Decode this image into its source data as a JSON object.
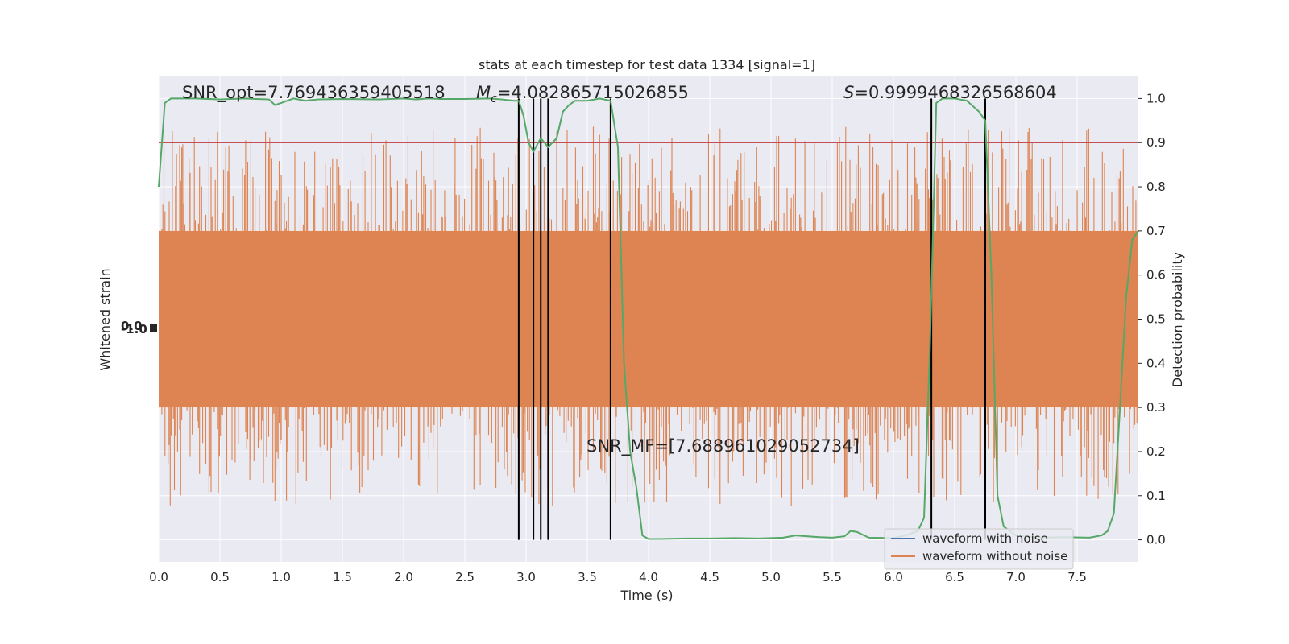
{
  "chart_data": {
    "type": "line",
    "title": "stats at each timestep for test data 1334 [signal=1]",
    "xlabel": "Time (s)",
    "ylabel_left": "Whitened strain",
    "ylabel_right": "Detection probability",
    "xlim": [
      0.0,
      8.0
    ],
    "ylim_right": [
      -0.05,
      1.05
    ],
    "x_ticks": [
      "0.0",
      "0.5",
      "1.0",
      "1.5",
      "2.0",
      "2.5",
      "3.0",
      "3.5",
      "4.0",
      "4.5",
      "5.0",
      "5.5",
      "6.0",
      "6.5",
      "7.0",
      "7.5"
    ],
    "x_tick_values": [
      0.0,
      0.5,
      1.0,
      1.5,
      2.0,
      2.5,
      3.0,
      3.5,
      4.0,
      4.5,
      5.0,
      5.5,
      6.0,
      6.5,
      7.0,
      7.5
    ],
    "right_ticks": [
      "0.0",
      "0.1",
      "0.2",
      "0.3",
      "0.4",
      "0.5",
      "0.6",
      "0.7",
      "0.8",
      "0.9",
      "1.0"
    ],
    "right_tick_values": [
      0.0,
      0.1,
      0.2,
      0.3,
      0.4,
      0.5,
      0.6,
      0.7,
      0.8,
      0.9,
      1.0
    ],
    "grid": true,
    "threshold": 0.9,
    "vlines": [
      2.94,
      3.06,
      3.12,
      3.18,
      3.69,
      6.31,
      6.75
    ],
    "annotations": {
      "snr_opt": "SNR_opt=7.769436359405518",
      "mc_symbol": "M",
      "mc_sub": "c",
      "mc_value": "=4.082865715026855",
      "s_symbol": "S",
      "s_value": "=0.9999468326568604",
      "snr_mf": "SNR_MF=[7.688961029052734]"
    },
    "legend": {
      "placement": "lower-right",
      "entries": [
        {
          "label": "waveform with noise",
          "color": "#4c72b0"
        },
        {
          "label": "waveform without noise",
          "color": "#dd8452"
        }
      ]
    },
    "colors": {
      "noise_fill": "#dd8452",
      "probability_line": "#55a868",
      "threshold_line": "#c44e52",
      "vline": "#000000",
      "plot_bg": "#eaeaf2"
    },
    "series": [
      {
        "name": "Detection probability",
        "x": [
          0.0,
          0.05,
          0.1,
          0.2,
          0.3,
          0.5,
          0.7,
          0.8,
          0.9,
          0.95,
          1.0,
          1.1,
          1.2,
          1.3,
          1.5,
          1.8,
          2.0,
          2.1,
          2.2,
          2.3,
          2.5,
          2.7,
          2.8,
          2.9,
          2.94,
          2.98,
          3.02,
          3.06,
          3.12,
          3.18,
          3.25,
          3.3,
          3.35,
          3.4,
          3.5,
          3.6,
          3.69,
          3.75,
          3.8,
          3.85,
          3.9,
          3.95,
          4.0,
          4.05,
          4.1,
          4.3,
          4.5,
          4.7,
          4.9,
          5.1,
          5.2,
          5.4,
          5.5,
          5.6,
          5.65,
          5.7,
          5.8,
          6.0,
          6.1,
          6.2,
          6.25,
          6.3,
          6.35,
          6.4,
          6.5,
          6.6,
          6.7,
          6.75,
          6.8,
          6.85,
          6.9,
          7.0,
          7.2,
          7.4,
          7.6,
          7.7,
          7.75,
          7.8,
          7.85,
          7.9,
          7.95,
          8.0
        ],
        "y": [
          0.8,
          0.99,
          1.0,
          1.0,
          1.0,
          0.998,
          1.0,
          0.999,
          0.998,
          0.985,
          0.99,
          1.0,
          0.995,
          0.998,
          0.999,
          0.998,
          1.0,
          0.998,
          1.0,
          0.999,
          0.999,
          1.0,
          0.998,
          0.995,
          0.995,
          0.96,
          0.9,
          0.88,
          0.91,
          0.89,
          0.91,
          0.97,
          0.985,
          0.995,
          0.995,
          1.0,
          0.995,
          0.89,
          0.4,
          0.2,
          0.12,
          0.01,
          0.002,
          0.002,
          0.002,
          0.003,
          0.003,
          0.004,
          0.003,
          0.005,
          0.01,
          0.006,
          0.005,
          0.008,
          0.02,
          0.018,
          0.005,
          0.004,
          0.01,
          0.02,
          0.05,
          0.45,
          0.99,
          1.0,
          1.0,
          0.995,
          0.97,
          0.95,
          0.6,
          0.1,
          0.03,
          0.01,
          0.005,
          0.006,
          0.005,
          0.01,
          0.02,
          0.06,
          0.3,
          0.55,
          0.68,
          0.7
        ]
      }
    ]
  }
}
